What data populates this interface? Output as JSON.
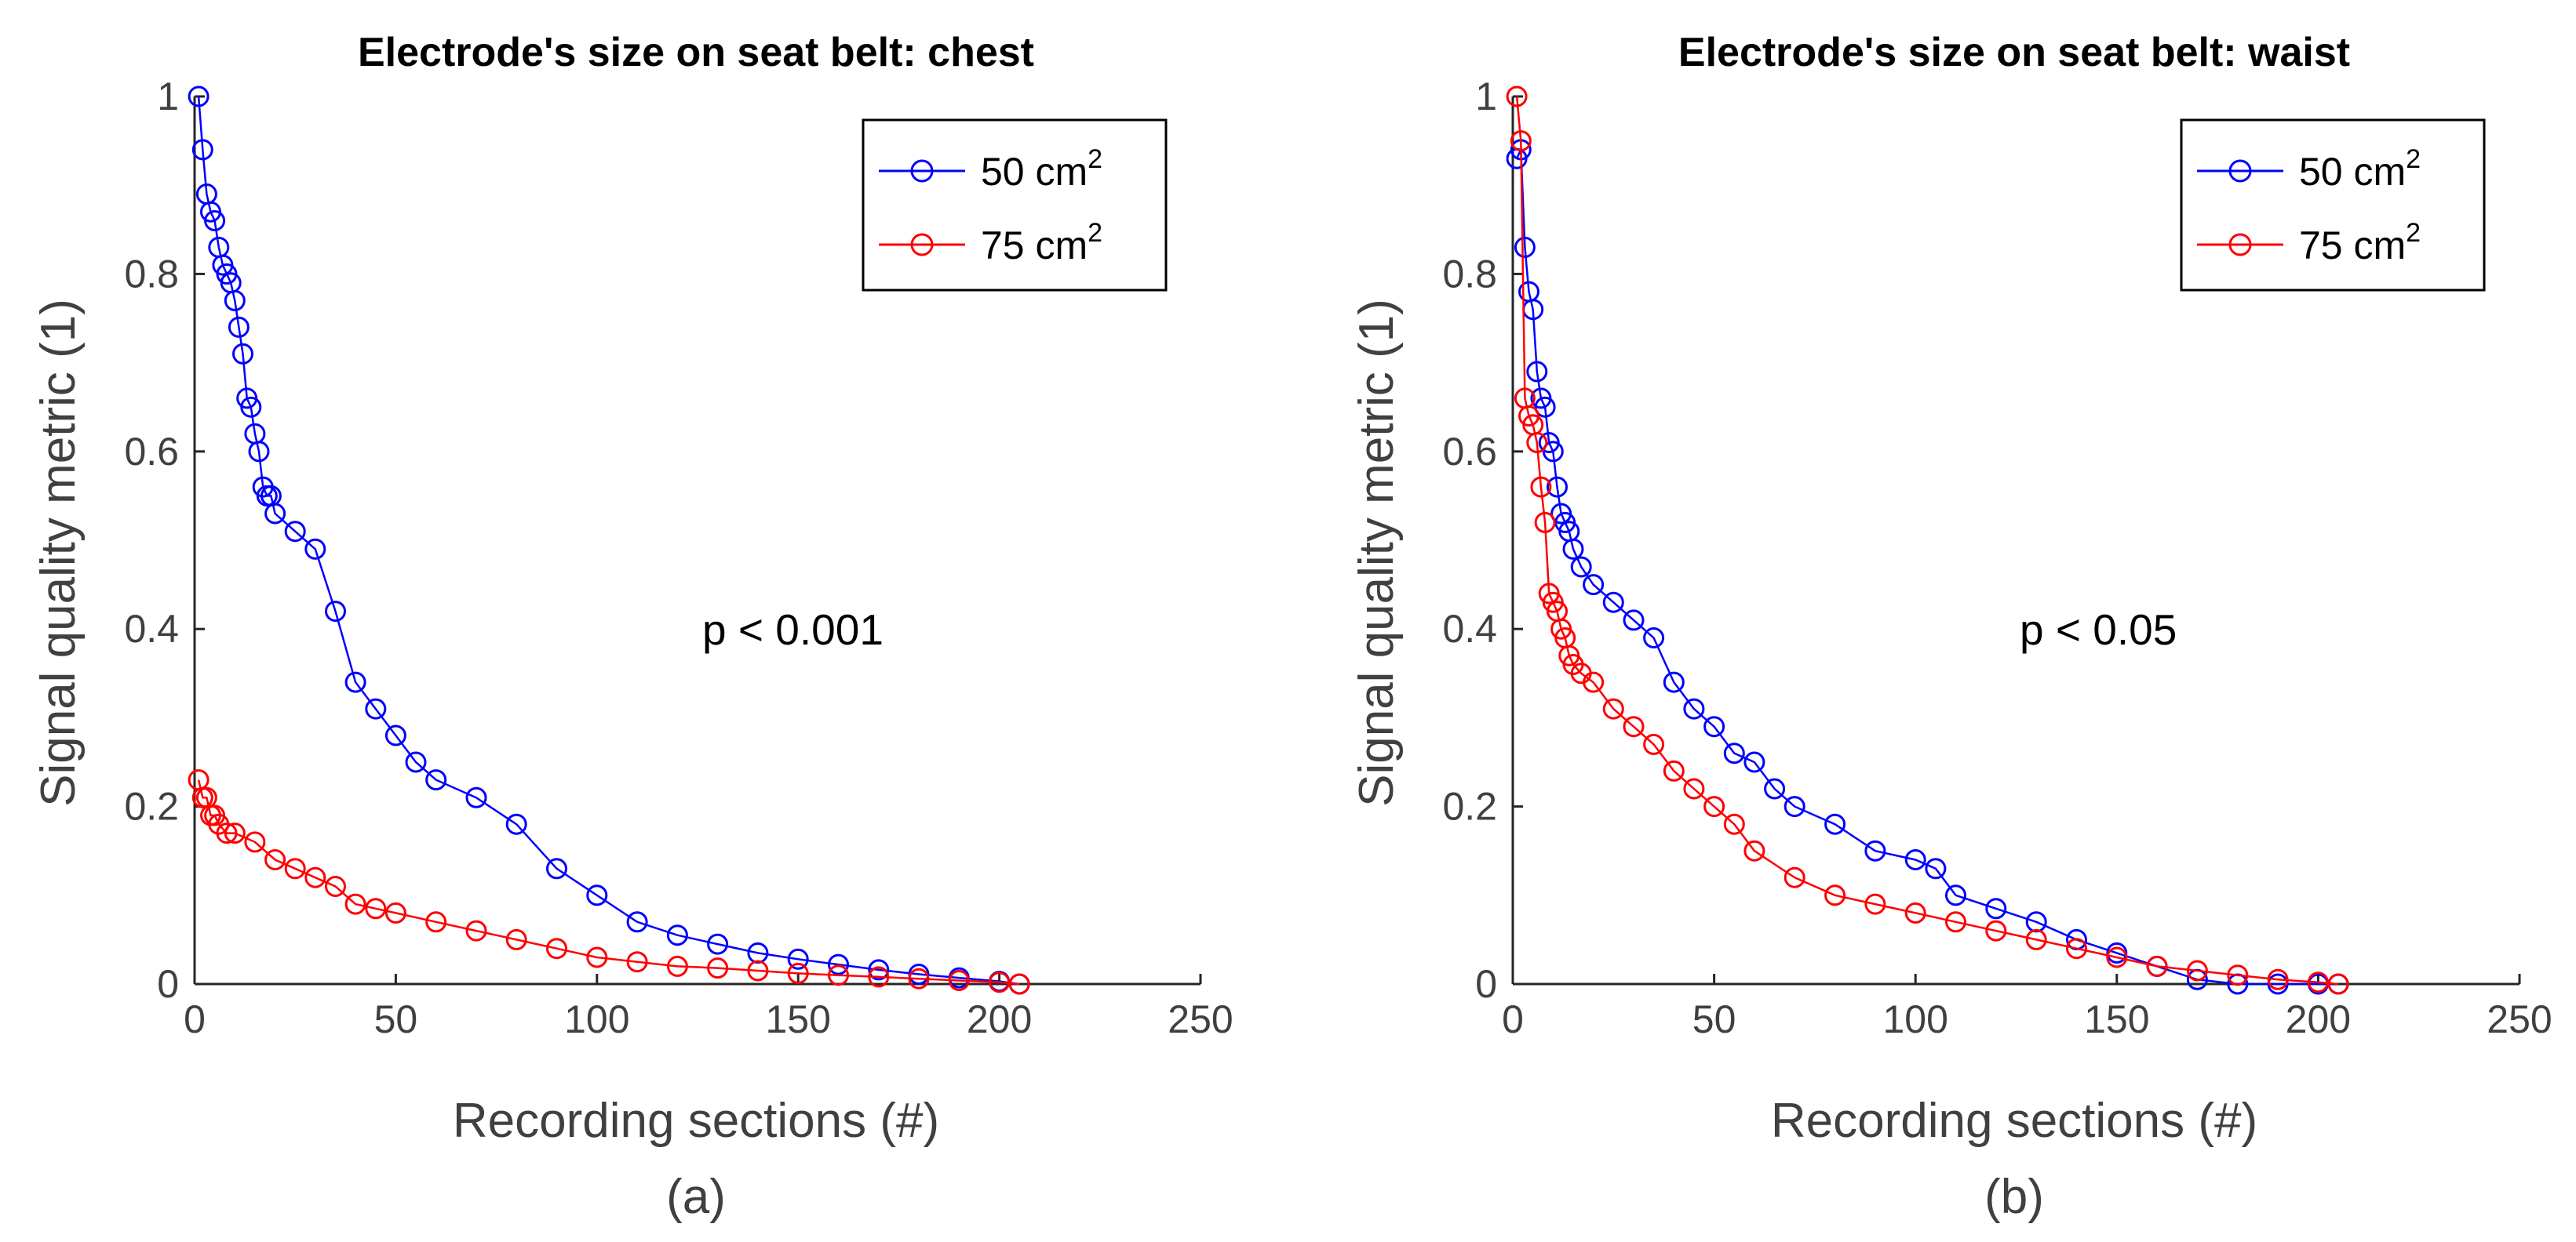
{
  "chart_data": [
    {
      "type": "line",
      "title": "Electrode's size on seat belt: chest",
      "xlabel": "Recording sections (#)",
      "ylabel": "Signal quality metric (1)",
      "subcaption": "(a)",
      "annotation": "p < 0.001",
      "xlim": [
        0,
        250
      ],
      "ylim": [
        0,
        1
      ],
      "xticks": [
        "0",
        "50",
        "100",
        "150",
        "200",
        "250"
      ],
      "yticks": [
        "0",
        "0.2",
        "0.4",
        "0.6",
        "0.8",
        "1"
      ],
      "legend_position": "top-right",
      "marker": "circle",
      "series": [
        {
          "name": "50 cm",
          "name_sup": "2",
          "color": "#0000ff",
          "x": [
            1,
            2,
            3,
            4,
            5,
            6,
            7,
            8,
            9,
            10,
            11,
            12,
            13,
            14,
            15,
            16,
            17,
            18,
            19,
            20,
            25,
            30,
            35,
            40,
            45,
            50,
            55,
            60,
            70,
            80,
            90,
            100,
            110,
            120,
            130,
            140,
            150,
            160,
            170,
            180,
            190,
            200,
            205
          ],
          "y": [
            1.0,
            0.94,
            0.89,
            0.87,
            0.86,
            0.83,
            0.81,
            0.8,
            0.79,
            0.77,
            0.74,
            0.71,
            0.66,
            0.65,
            0.62,
            0.6,
            0.56,
            0.55,
            0.55,
            0.53,
            0.51,
            0.49,
            0.42,
            0.34,
            0.31,
            0.28,
            0.25,
            0.23,
            0.21,
            0.18,
            0.13,
            0.1,
            0.07,
            0.055,
            0.045,
            0.035,
            0.028,
            0.022,
            0.016,
            0.011,
            0.007,
            0.003,
            0.0
          ]
        },
        {
          "name": "75 cm",
          "name_sup": "2",
          "color": "#ff0000",
          "x": [
            1,
            2,
            3,
            4,
            5,
            6,
            8,
            10,
            15,
            20,
            25,
            30,
            35,
            40,
            45,
            50,
            60,
            70,
            80,
            90,
            100,
            110,
            120,
            130,
            140,
            150,
            160,
            170,
            180,
            190,
            200,
            205
          ],
          "y": [
            0.23,
            0.21,
            0.21,
            0.19,
            0.19,
            0.18,
            0.17,
            0.17,
            0.16,
            0.14,
            0.13,
            0.12,
            0.11,
            0.09,
            0.085,
            0.08,
            0.07,
            0.06,
            0.05,
            0.04,
            0.03,
            0.025,
            0.02,
            0.018,
            0.015,
            0.012,
            0.01,
            0.008,
            0.006,
            0.004,
            0.002,
            0.0
          ]
        }
      ]
    },
    {
      "type": "line",
      "title": "Electrode's size on seat belt: waist",
      "xlabel": "Recording sections (#)",
      "ylabel": "Signal quality metric (1)",
      "subcaption": "(b)",
      "annotation": "p < 0.05",
      "xlim": [
        0,
        250
      ],
      "ylim": [
        0,
        1
      ],
      "xticks": [
        "0",
        "50",
        "100",
        "150",
        "200",
        "250"
      ],
      "yticks": [
        "0",
        "0.2",
        "0.4",
        "0.6",
        "0.8",
        "1"
      ],
      "legend_position": "top-right",
      "marker": "circle",
      "series": [
        {
          "name": "50 cm",
          "name_sup": "2",
          "color": "#0000ff",
          "x": [
            1,
            2,
            3,
            4,
            5,
            6,
            7,
            8,
            9,
            10,
            11,
            12,
            13,
            14,
            15,
            17,
            20,
            25,
            30,
            35,
            40,
            45,
            50,
            55,
            60,
            65,
            70,
            80,
            90,
            100,
            105,
            110,
            120,
            130,
            140,
            150,
            160,
            170,
            180,
            190,
            200,
            205
          ],
          "y": [
            0.93,
            0.94,
            0.83,
            0.78,
            0.76,
            0.69,
            0.66,
            0.65,
            0.61,
            0.6,
            0.56,
            0.53,
            0.52,
            0.51,
            0.49,
            0.47,
            0.45,
            0.43,
            0.41,
            0.39,
            0.34,
            0.31,
            0.29,
            0.26,
            0.25,
            0.22,
            0.2,
            0.18,
            0.15,
            0.14,
            0.13,
            0.1,
            0.085,
            0.07,
            0.05,
            0.035,
            0.02,
            0.005,
            0.0,
            0.0,
            0.0,
            0.0
          ]
        },
        {
          "name": "75 cm",
          "name_sup": "2",
          "color": "#ff0000",
          "x": [
            1,
            2,
            3,
            4,
            5,
            6,
            7,
            8,
            9,
            10,
            11,
            12,
            13,
            14,
            15,
            17,
            20,
            25,
            30,
            35,
            40,
            45,
            50,
            55,
            60,
            70,
            80,
            90,
            100,
            110,
            120,
            130,
            140,
            150,
            160,
            170,
            180,
            190,
            200,
            205
          ],
          "y": [
            1.0,
            0.95,
            0.66,
            0.64,
            0.63,
            0.61,
            0.56,
            0.52,
            0.44,
            0.43,
            0.42,
            0.4,
            0.39,
            0.37,
            0.36,
            0.35,
            0.34,
            0.31,
            0.29,
            0.27,
            0.24,
            0.22,
            0.2,
            0.18,
            0.15,
            0.12,
            0.1,
            0.09,
            0.08,
            0.07,
            0.06,
            0.05,
            0.04,
            0.03,
            0.02,
            0.015,
            0.01,
            0.005,
            0.002,
            0.0
          ]
        }
      ]
    }
  ]
}
